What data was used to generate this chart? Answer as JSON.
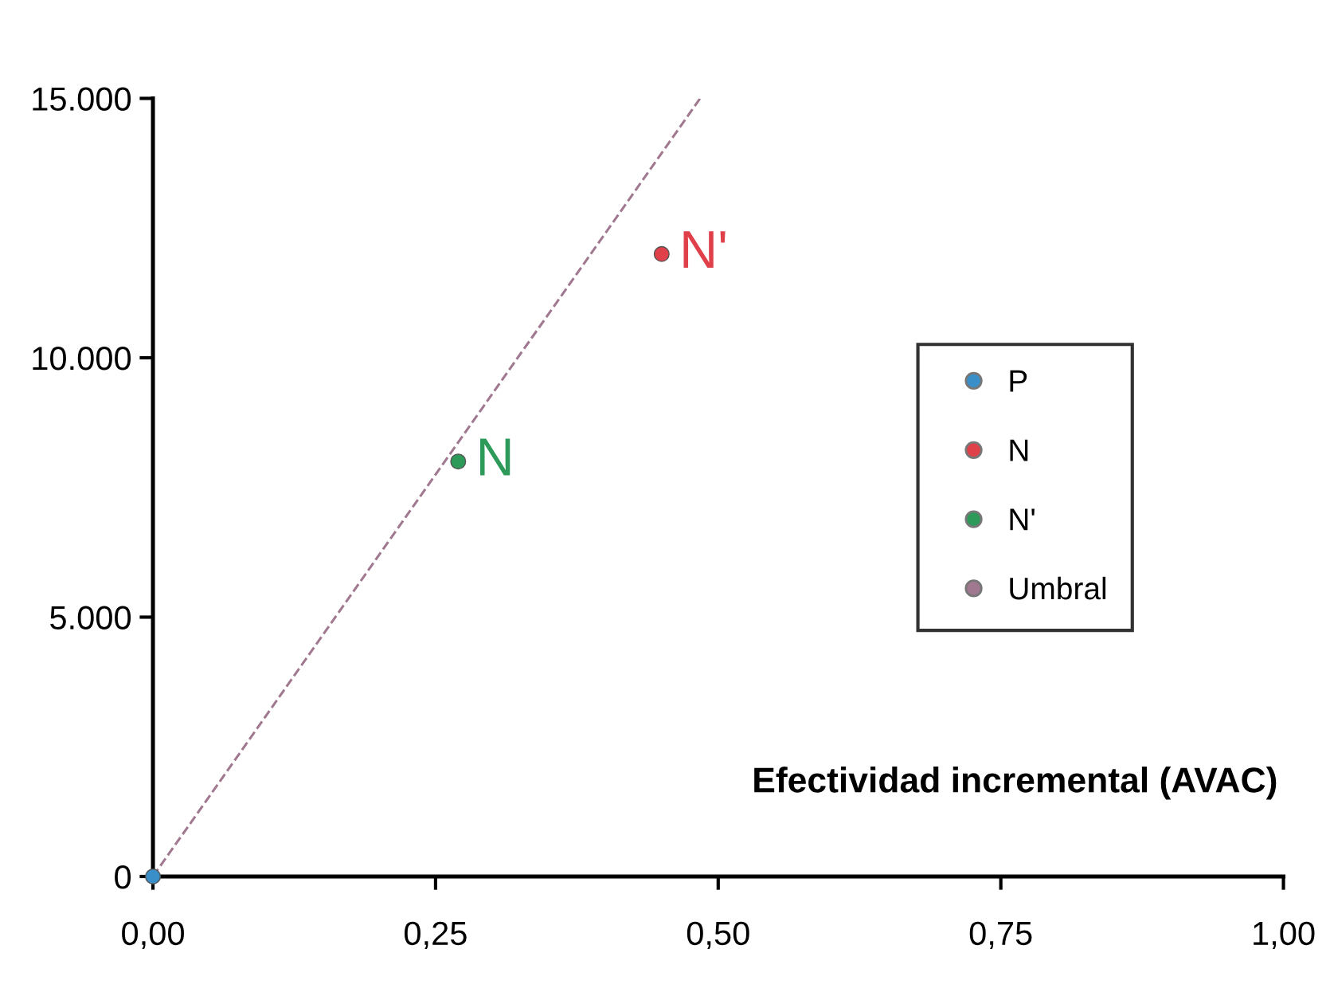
{
  "chart_data": {
    "type": "scatter",
    "xlabel": "Efectividad incremental (AVAC)",
    "series": [
      {
        "name": "P",
        "color": "#3a8fc8",
        "x": [
          0
        ],
        "values": [
          0
        ]
      },
      {
        "name": "N",
        "color": "#e0404a",
        "x": [
          0.45
        ],
        "values": [
          12000
        ]
      },
      {
        "name": "N'",
        "color": "#2e9a5a",
        "x": [
          0.27
        ],
        "values": [
          8000
        ]
      },
      {
        "name": "Umbral",
        "type": "line",
        "marker": "none",
        "line_style": "dashed",
        "color": "#a07890",
        "x": [
          0,
          0.484
        ],
        "values": [
          0,
          15000
        ]
      }
    ],
    "annotations": [
      {
        "text": "N'",
        "x": 0.45,
        "y": 12000
      },
      {
        "text": "N",
        "x": 0.27,
        "y": 8000
      }
    ],
    "xlim": [
      0,
      1
    ],
    "ylim": [
      0,
      15000
    ],
    "xticks": [
      {
        "value": 0,
        "label": "0,00"
      },
      {
        "value": 0.25,
        "label": "0,25"
      },
      {
        "value": 0.5,
        "label": "0,50"
      },
      {
        "value": 0.75,
        "label": "0,75"
      },
      {
        "value": 1,
        "label": "1,00"
      }
    ],
    "yticks": [
      0,
      {
        "value": 5000,
        "label": "5.000"
      },
      {
        "value": 10000,
        "label": "10.000"
      },
      {
        "value": 15000,
        "label": "15.000"
      }
    ],
    "marker": "circle",
    "grid": false,
    "legend": "right"
  }
}
